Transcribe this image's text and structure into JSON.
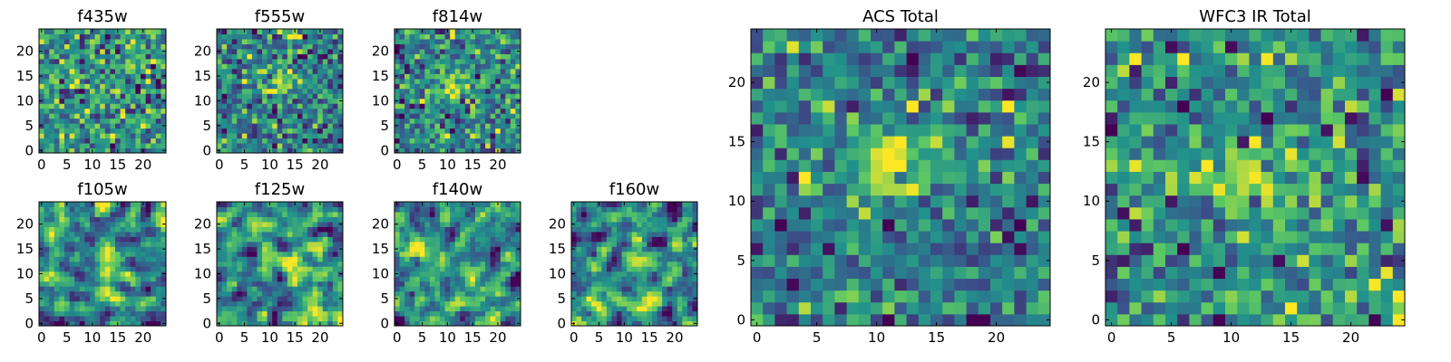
{
  "figure": {
    "colormap": "viridis",
    "colormap_stops": [
      "#440154",
      "#3b528b",
      "#21918c",
      "#5ec962",
      "#fde725"
    ]
  },
  "chart_data": [
    {
      "type": "heatmap",
      "title": "f435w",
      "grid_size": 25,
      "xlim": [
        0,
        24
      ],
      "ylim": [
        0,
        24
      ],
      "xticks": [
        "0",
        "5",
        "10",
        "15",
        "20"
      ],
      "yticks": [
        "0",
        "5",
        "10",
        "15",
        "20"
      ],
      "noise_level": 0.5,
      "source_peak": 0.15,
      "source_center": [
        12,
        12
      ],
      "smoothing": 0
    },
    {
      "type": "heatmap",
      "title": "f555w",
      "grid_size": 25,
      "xlim": [
        0,
        24
      ],
      "ylim": [
        0,
        24
      ],
      "xticks": [
        "0",
        "5",
        "10",
        "15",
        "20"
      ],
      "yticks": [
        "0",
        "5",
        "10",
        "15",
        "20"
      ],
      "noise_level": 0.5,
      "source_peak": 0.9,
      "source_center": [
        12,
        13
      ],
      "smoothing": 0
    },
    {
      "type": "heatmap",
      "title": "f814w",
      "grid_size": 25,
      "xlim": [
        0,
        24
      ],
      "ylim": [
        0,
        24
      ],
      "xticks": [
        "0",
        "5",
        "10",
        "15",
        "20"
      ],
      "yticks": [
        "0",
        "5",
        "10",
        "15",
        "20"
      ],
      "noise_level": 0.5,
      "source_peak": 0.9,
      "source_center": [
        11,
        13
      ],
      "smoothing": 0
    },
    {
      "type": "heatmap",
      "title": "f105w",
      "grid_size": 25,
      "xlim": [
        0,
        24
      ],
      "ylim": [
        0,
        24
      ],
      "xticks": [
        "0",
        "5",
        "10",
        "15",
        "20"
      ],
      "yticks": [
        "0",
        "5",
        "10",
        "15",
        "20"
      ],
      "noise_level": 0.6,
      "source_peak": 0.5,
      "source_center": [
        12,
        12
      ],
      "smoothing": 1
    },
    {
      "type": "heatmap",
      "title": "f125w",
      "grid_size": 25,
      "xlim": [
        0,
        24
      ],
      "ylim": [
        0,
        24
      ],
      "xticks": [
        "0",
        "5",
        "10",
        "15",
        "20"
      ],
      "yticks": [
        "0",
        "5",
        "10",
        "15",
        "20"
      ],
      "noise_level": 0.6,
      "source_peak": 0.4,
      "source_center": [
        13,
        11
      ],
      "smoothing": 1
    },
    {
      "type": "heatmap",
      "title": "f140w",
      "grid_size": 25,
      "xlim": [
        0,
        24
      ],
      "ylim": [
        0,
        24
      ],
      "xticks": [
        "0",
        "5",
        "10",
        "15",
        "20"
      ],
      "yticks": [
        "0",
        "5",
        "10",
        "15",
        "20"
      ],
      "noise_level": 0.6,
      "source_peak": 0.45,
      "source_center": [
        12,
        12
      ],
      "smoothing": 1
    },
    {
      "type": "heatmap",
      "title": "f160w",
      "grid_size": 25,
      "xlim": [
        0,
        24
      ],
      "ylim": [
        0,
        24
      ],
      "xticks": [
        "0",
        "5",
        "10",
        "15",
        "20"
      ],
      "yticks": [
        "0",
        "5",
        "10",
        "15",
        "20"
      ],
      "noise_level": 0.6,
      "source_peak": 0.4,
      "source_center": [
        12,
        12
      ],
      "smoothing": 1
    },
    {
      "type": "heatmap",
      "title": "ACS Total",
      "grid_size": 25,
      "xlim": [
        0,
        24
      ],
      "ylim": [
        0,
        24
      ],
      "xticks": [
        "0",
        "5",
        "10",
        "15",
        "20"
      ],
      "yticks": [
        "0",
        "5",
        "10",
        "15",
        "20"
      ],
      "noise_level": 0.45,
      "source_peak": 1.2,
      "source_center": [
        11,
        13
      ],
      "smoothing": 0
    },
    {
      "type": "heatmap",
      "title": "WFC3 IR Total",
      "grid_size": 25,
      "xlim": [
        0,
        24
      ],
      "ylim": [
        0,
        24
      ],
      "xticks": [
        "0",
        "5",
        "10",
        "15",
        "20"
      ],
      "yticks": [
        "0",
        "5",
        "10",
        "15",
        "20"
      ],
      "noise_level": 0.5,
      "source_peak": 0.9,
      "source_center": [
        12,
        12
      ],
      "smoothing": 0
    }
  ]
}
